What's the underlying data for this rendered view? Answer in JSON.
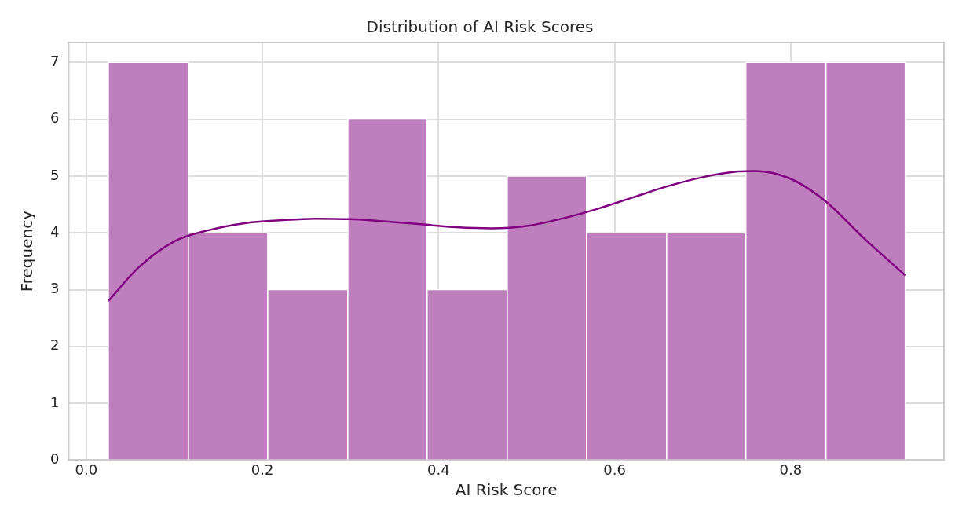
{
  "chart_data": {
    "type": "histogram",
    "title": "Distribution of AI Risk Scores",
    "xlabel": "AI Risk Score",
    "ylabel": "Frequency",
    "bins": [
      0.025,
      0.116,
      0.206,
      0.297,
      0.387,
      0.478,
      0.568,
      0.659,
      0.749,
      0.84,
      0.93
    ],
    "values": [
      7,
      4,
      3,
      6,
      3,
      5,
      4,
      4,
      7,
      7
    ],
    "color": "#bf7fbf",
    "series": [
      {
        "type": "line",
        "color": "#800080",
        "x": [
          0.025,
          0.06,
          0.1,
          0.14,
          0.18,
          0.22,
          0.26,
          0.3,
          0.34,
          0.38,
          0.42,
          0.46,
          0.5,
          0.54,
          0.58,
          0.62,
          0.66,
          0.7,
          0.74,
          0.76,
          0.8,
          0.84,
          0.88,
          0.93
        ],
        "values": [
          2.8,
          3.4,
          3.85,
          4.05,
          4.17,
          4.22,
          4.25,
          4.24,
          4.2,
          4.15,
          4.1,
          4.08,
          4.12,
          4.25,
          4.42,
          4.62,
          4.82,
          4.98,
          5.08,
          5.09,
          4.95,
          4.55,
          3.95,
          3.25
        ]
      }
    ],
    "xlim": [
      -0.02,
      0.974
    ],
    "ylim": [
      0,
      7.35
    ],
    "xticks": [
      {
        "value": 0,
        "label": "0.0"
      },
      {
        "value": 0.2,
        "label": "0.2"
      },
      {
        "value": 0.4,
        "label": "0.4"
      },
      {
        "value": 0.6,
        "label": "0.6"
      },
      {
        "value": 0.8,
        "label": "0.8"
      }
    ],
    "yticks": [
      0,
      1,
      2,
      3,
      4,
      5,
      6,
      7
    ],
    "grid": true,
    "marker": "none"
  }
}
